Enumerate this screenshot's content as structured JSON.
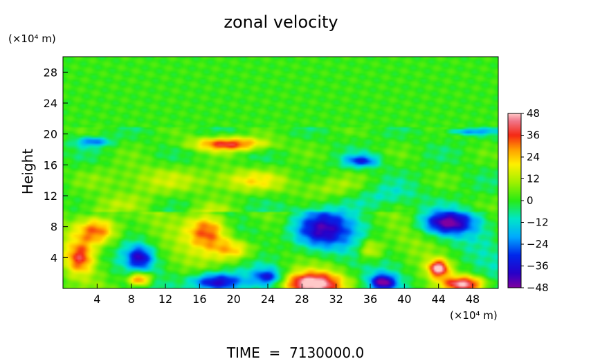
{
  "chart_data": {
    "type": "heatmap",
    "title": "zonal velocity",
    "xlabel": "",
    "ylabel": "Height",
    "x_unit": "(×10⁴ m)",
    "y_unit": "(×10⁴ m)",
    "xlim": [
      0,
      51
    ],
    "ylim": [
      0,
      30
    ],
    "xticks": [
      4,
      8,
      12,
      16,
      20,
      24,
      28,
      32,
      36,
      40,
      44,
      48
    ],
    "yticks": [
      4,
      8,
      12,
      16,
      20,
      24,
      28
    ],
    "colorbar": {
      "ticks": [
        48,
        36,
        24,
        12,
        0,
        -12,
        -24,
        -36,
        -48
      ],
      "range": [
        -48,
        48
      ]
    },
    "field_blobs": [
      {
        "x": 4,
        "y": 7.5,
        "rx": 2.6,
        "ry": 2.0,
        "v": 38
      },
      {
        "x": 2,
        "y": 4,
        "rx": 1.6,
        "ry": 2.0,
        "v": 30
      },
      {
        "x": 17,
        "y": 7.5,
        "rx": 2.5,
        "ry": 2.5,
        "v": 36
      },
      {
        "x": 20,
        "y": 5,
        "rx": 2.5,
        "ry": 1.5,
        "v": 28
      },
      {
        "x": 29,
        "y": 0.6,
        "rx": 3.5,
        "ry": 1.5,
        "v": 50
      },
      {
        "x": 47,
        "y": 0.6,
        "rx": 2.5,
        "ry": 1.0,
        "v": 42
      },
      {
        "x": 44,
        "y": 2.6,
        "rx": 1.2,
        "ry": 1.1,
        "v": 44
      },
      {
        "x": 9,
        "y": 1.2,
        "rx": 1.4,
        "ry": 0.9,
        "v": 38
      },
      {
        "x": 19.5,
        "y": 18.7,
        "rx": 4.5,
        "ry": 0.9,
        "v": 36
      },
      {
        "x": 30,
        "y": 7.5,
        "rx": 3.5,
        "ry": 2.5,
        "v": -42
      },
      {
        "x": 45,
        "y": 8.5,
        "rx": 3.0,
        "ry": 1.5,
        "v": -44
      },
      {
        "x": 18,
        "y": 0.8,
        "rx": 3.0,
        "ry": 1.2,
        "v": -46
      },
      {
        "x": 9,
        "y": 4,
        "rx": 1.5,
        "ry": 1.5,
        "v": -34
      },
      {
        "x": 37.5,
        "y": 0.8,
        "rx": 1.5,
        "ry": 1.0,
        "v": -44
      },
      {
        "x": 35,
        "y": 16.5,
        "rx": 2.0,
        "ry": 0.8,
        "v": -30
      },
      {
        "x": 3.5,
        "y": 19,
        "rx": 2.0,
        "ry": 0.6,
        "v": -24
      },
      {
        "x": 48,
        "y": 20.3,
        "rx": 3.0,
        "ry": 0.4,
        "v": -20
      },
      {
        "x": 24,
        "y": 1.5,
        "rx": 1.6,
        "ry": 1.0,
        "v": -30
      },
      {
        "x": 36,
        "y": 5,
        "rx": 1.5,
        "ry": 1.5,
        "v": 22
      },
      {
        "x": 21.5,
        "y": 14,
        "rx": 5.0,
        "ry": 1.5,
        "v": 18
      },
      {
        "x": 10,
        "y": 14,
        "rx": 6.0,
        "ry": 2.0,
        "v": 12
      },
      {
        "x": 31,
        "y": 13,
        "rx": 4.0,
        "ry": 1.5,
        "v": 10
      },
      {
        "x": 38,
        "y": 12,
        "rx": 4.0,
        "ry": 1.5,
        "v": -10
      },
      {
        "x": 6,
        "y": 11,
        "rx": 4.0,
        "ry": 1.2,
        "v": 8
      }
    ]
  },
  "footer": {
    "time_label": "TIME  =  7130000.0"
  }
}
